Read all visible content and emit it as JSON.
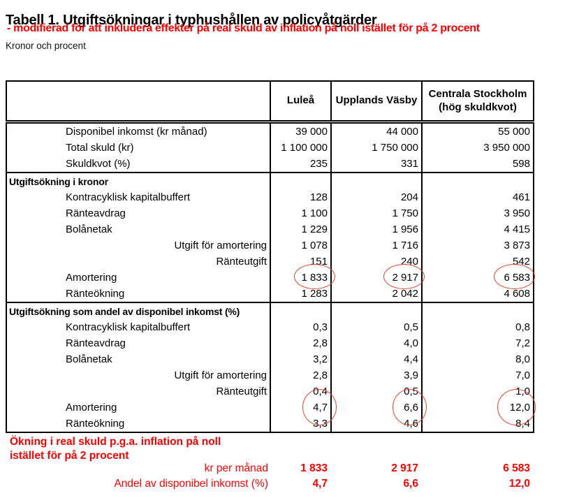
{
  "title": "Tabell 1. Utgiftsökningar i typhushållen av policyåtgärder",
  "subtitle": "- modifierad för att inkludera effekter på real skuld av inflation på noll istället för på 2 procent",
  "unit_note": "Kronor och procent",
  "colors": {
    "annotation_red": "#ff0000",
    "circle_red": "#e8432b",
    "text": "#000000"
  },
  "table": {
    "columns": [
      "Luleå",
      "Upplands Väsby",
      "Centrala Stockholm (hög skuldkvot)"
    ],
    "rows": [
      {
        "label": "Disponibel inkomst (kr månad)",
        "style": "indent",
        "values": [
          "39 000",
          "44 000",
          "55 000"
        ]
      },
      {
        "label": "Total skuld (kr)",
        "style": "indent",
        "values": [
          "1 100 000",
          "1 750 000",
          "3 950 000"
        ]
      },
      {
        "label": "Skuldkvot (%)",
        "style": "indent",
        "values": [
          "235",
          "331",
          "598"
        ]
      },
      {
        "label": "Utgiftsökning i kronor",
        "style": "section",
        "values": [
          "",
          "",
          ""
        ]
      },
      {
        "label": "Kontracyklisk kapitalbuffert",
        "style": "indent",
        "values": [
          "128",
          "204",
          "461"
        ]
      },
      {
        "label": "Ränteavdrag",
        "style": "indent",
        "values": [
          "1 100",
          "1 750",
          "3 950"
        ]
      },
      {
        "label": "Bolånetak",
        "style": "indent",
        "values": [
          "1 229",
          "1 956",
          "4 415"
        ]
      },
      {
        "label": "Utgift för amortering",
        "style": "right",
        "values": [
          "1 078",
          "1 716",
          "3 873"
        ]
      },
      {
        "label": "Ränteutgift",
        "style": "right",
        "values": [
          "151",
          "240",
          "542"
        ]
      },
      {
        "label": "Amortering",
        "style": "indent",
        "circled": true,
        "values": [
          "1 833",
          "2 917",
          "6 583"
        ]
      },
      {
        "label": "Ränteökning",
        "style": "indent",
        "values": [
          "1 283",
          "2 042",
          "4 608"
        ]
      },
      {
        "label": "Utgiftsökning som andel av disponibel inkomst (%)",
        "style": "section",
        "values": [
          "",
          "",
          ""
        ]
      },
      {
        "label": "Kontracyklisk kapitalbuffert",
        "style": "indent",
        "values": [
          "0,3",
          "0,5",
          "0,8"
        ]
      },
      {
        "label": "Ränteavdrag",
        "style": "indent",
        "values": [
          "2,8",
          "4,0",
          "7,2"
        ]
      },
      {
        "label": "Bolånetak",
        "style": "indent",
        "values": [
          "3,2",
          "4,4",
          "8,0"
        ]
      },
      {
        "label": "Utgift för amortering",
        "style": "right",
        "values": [
          "2,8",
          "3,9",
          "7,0"
        ]
      },
      {
        "label": "Ränteutgift",
        "style": "right",
        "values": [
          "0,4",
          "0,5",
          "1,0"
        ]
      },
      {
        "label": "Amortering",
        "style": "indent",
        "circled": true,
        "values": [
          "4,7",
          "6,6",
          "12,0"
        ]
      },
      {
        "label": "Ränteökning",
        "style": "indent",
        "values": [
          "3,3",
          "4,6",
          "8,4"
        ]
      }
    ]
  },
  "footer": {
    "heading_line1": "Ökning i real skuld p.g.a. inflation på noll",
    "heading_line2": "istället för på 2 procent",
    "rows": [
      {
        "label": "kr per månad",
        "values": [
          "1 833",
          "2 917",
          "6 583"
        ]
      },
      {
        "label": "Andel av disponibel inkomst (%)",
        "values": [
          "4,7",
          "6,6",
          "12,0"
        ]
      }
    ]
  }
}
